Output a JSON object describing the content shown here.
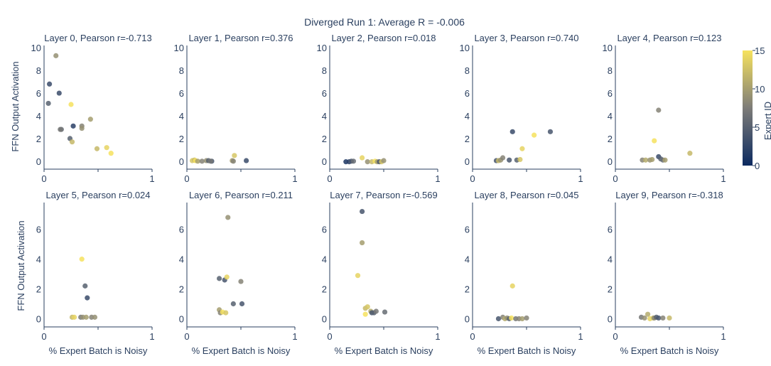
{
  "figure": {
    "title": "Diverged Run 1: Average R = -0.006",
    "xlabel": "% Expert Batch is Noisy",
    "ylabel": "FFN Output Activation",
    "colorbar": {
      "title": "Expert ID",
      "ticks": [
        "0",
        "5",
        "10",
        "15"
      ],
      "min": 0,
      "max": 15
    }
  },
  "colors": {
    "low": "#0c2a60",
    "mid": "#7d7c78",
    "high": "#f6e25e",
    "axis": "#2a3f5f"
  },
  "chart_data": [
    {
      "type": "scatter",
      "title": "Layer 0, Pearson r=-0.713",
      "xlim": [
        0,
        1
      ],
      "ylim": [
        -0.7,
        10.2
      ],
      "yticks": [
        0,
        2,
        4,
        6,
        8,
        10
      ],
      "xticks": [
        0,
        0.5,
        1
      ],
      "xticklabels": [
        "0",
        "",
        "1"
      ],
      "points": [
        [
          0.11,
          9.3,
          9
        ],
        [
          0.05,
          6.8,
          3
        ],
        [
          0.04,
          5.1,
          5
        ],
        [
          0.14,
          6.0,
          3
        ],
        [
          0.27,
          3.1,
          2
        ],
        [
          0.35,
          3.1,
          8
        ],
        [
          0.35,
          2.9,
          9
        ],
        [
          0.43,
          3.7,
          10
        ],
        [
          0.16,
          2.8,
          6
        ],
        [
          0.15,
          2.8,
          7
        ],
        [
          0.25,
          5.0,
          15
        ],
        [
          0.24,
          2.0,
          5
        ],
        [
          0.26,
          1.7,
          12
        ],
        [
          0.49,
          1.1,
          12
        ],
        [
          0.58,
          1.2,
          14
        ],
        [
          0.62,
          0.7,
          15
        ]
      ]
    },
    {
      "type": "scatter",
      "title": "Layer 1, Pearson r=0.376",
      "xlim": [
        0,
        1
      ],
      "ylim": [
        -0.7,
        10.2
      ],
      "yticks": [
        0,
        2,
        4,
        6,
        8,
        10
      ],
      "xticks": [
        0,
        0.5,
        1
      ],
      "xticklabels": [
        "0",
        "",
        "1"
      ],
      "points": [
        [
          0.05,
          0.05,
          13
        ],
        [
          0.07,
          0.1,
          12
        ],
        [
          0.08,
          0.05,
          15
        ],
        [
          0.1,
          0.0,
          10
        ],
        [
          0.14,
          0.0,
          8
        ],
        [
          0.18,
          0.05,
          9
        ],
        [
          0.2,
          0.05,
          5
        ],
        [
          0.23,
          0.0,
          4
        ],
        [
          0.22,
          0.0,
          7
        ],
        [
          0.42,
          0.05,
          10
        ],
        [
          0.43,
          0.0,
          8
        ],
        [
          0.44,
          0.5,
          13
        ],
        [
          0.55,
          0.05,
          3
        ]
      ]
    },
    {
      "type": "scatter",
      "title": "Layer 2, Pearson r=0.018",
      "xlim": [
        0,
        1
      ],
      "ylim": [
        -0.7,
        10.2
      ],
      "yticks": [
        0,
        2,
        4,
        6,
        8,
        10
      ],
      "xticks": [
        0,
        0.5,
        1
      ],
      "xticklabels": [
        "0",
        "",
        "1"
      ],
      "points": [
        [
          0.15,
          -0.05,
          1
        ],
        [
          0.18,
          -0.05,
          2
        ],
        [
          0.2,
          0.0,
          4
        ],
        [
          0.22,
          0.0,
          6
        ],
        [
          0.3,
          0.3,
          14
        ],
        [
          0.35,
          -0.05,
          9
        ],
        [
          0.39,
          -0.05,
          12
        ],
        [
          0.42,
          0.0,
          15
        ],
        [
          0.44,
          -0.05,
          10
        ],
        [
          0.46,
          -0.05,
          4
        ],
        [
          0.48,
          -0.05,
          13
        ],
        [
          0.5,
          0.05,
          9
        ]
      ]
    },
    {
      "type": "scatter",
      "title": "Layer 3, Pearson r=0.740",
      "xlim": [
        0,
        1
      ],
      "ylim": [
        -0.7,
        10.2
      ],
      "yticks": [
        0,
        2,
        4,
        6,
        8,
        10
      ],
      "xticks": [
        0,
        0.5,
        1
      ],
      "xticklabels": [
        "0",
        "",
        "1"
      ],
      "points": [
        [
          0.22,
          0.05,
          4
        ],
        [
          0.24,
          0.05,
          12
        ],
        [
          0.26,
          0.1,
          9
        ],
        [
          0.28,
          0.3,
          8
        ],
        [
          0.34,
          0.1,
          4
        ],
        [
          0.37,
          2.6,
          3
        ],
        [
          0.41,
          0.1,
          5
        ],
        [
          0.44,
          0.15,
          13
        ],
        [
          0.46,
          1.1,
          14
        ],
        [
          0.57,
          2.3,
          15
        ],
        [
          0.72,
          2.6,
          4
        ]
      ]
    },
    {
      "type": "scatter",
      "title": "Layer 4, Pearson r=0.123",
      "xlim": [
        0,
        1
      ],
      "ylim": [
        -0.7,
        10.2
      ],
      "yticks": [
        0,
        2,
        4,
        6,
        8,
        10
      ],
      "xticks": [
        0,
        0.5,
        1
      ],
      "xticklabels": [
        "0",
        "",
        "1"
      ],
      "points": [
        [
          0.25,
          0.1,
          8
        ],
        [
          0.28,
          0.1,
          11
        ],
        [
          0.32,
          0.1,
          9
        ],
        [
          0.34,
          0.15,
          10
        ],
        [
          0.36,
          1.8,
          15
        ],
        [
          0.4,
          4.5,
          8
        ],
        [
          0.4,
          0.4,
          3
        ],
        [
          0.42,
          0.2,
          5
        ],
        [
          0.44,
          0.1,
          6
        ],
        [
          0.46,
          0.1,
          10
        ],
        [
          0.69,
          0.7,
          12
        ]
      ]
    },
    {
      "type": "scatter",
      "title": "Layer 5, Pearson r=0.024",
      "xlim": [
        0,
        1
      ],
      "ylim": [
        -0.55,
        7.8
      ],
      "yticks": [
        0,
        2,
        4,
        6
      ],
      "xticks": [
        0,
        0.5,
        1
      ],
      "xticklabels": [
        "0",
        "",
        "1"
      ],
      "points": [
        [
          0.26,
          0.1,
          12
        ],
        [
          0.28,
          0.1,
          14
        ],
        [
          0.34,
          0.1,
          7
        ],
        [
          0.35,
          4.0,
          15
        ],
        [
          0.36,
          0.1,
          9
        ],
        [
          0.38,
          2.2,
          5
        ],
        [
          0.39,
          0.1,
          10
        ],
        [
          0.4,
          1.4,
          3
        ],
        [
          0.44,
          0.1,
          8
        ],
        [
          0.47,
          0.1,
          9
        ]
      ]
    },
    {
      "type": "scatter",
      "title": "Layer 6, Pearson r=0.211",
      "xlim": [
        0,
        1
      ],
      "ylim": [
        -0.55,
        7.8
      ],
      "yticks": [
        0,
        2,
        4,
        6
      ],
      "xticks": [
        0,
        0.5,
        1
      ],
      "xticklabels": [
        "0",
        "",
        "1"
      ],
      "points": [
        [
          0.3,
          2.7,
          5
        ],
        [
          0.3,
          0.6,
          10
        ],
        [
          0.31,
          0.4,
          8
        ],
        [
          0.33,
          0.45,
          15
        ],
        [
          0.35,
          2.6,
          4
        ],
        [
          0.36,
          0.4,
          13
        ],
        [
          0.37,
          2.8,
          14
        ],
        [
          0.38,
          6.8,
          9
        ],
        [
          0.43,
          1.0,
          5
        ],
        [
          0.5,
          2.5,
          8
        ],
        [
          0.51,
          1.0,
          4
        ]
      ]
    },
    {
      "type": "scatter",
      "title": "Layer 7, Pearson r=-0.569",
      "xlim": [
        0,
        1
      ],
      "ylim": [
        -0.55,
        7.8
      ],
      "yticks": [
        0,
        2,
        4,
        6
      ],
      "xticks": [
        0,
        0.5,
        1
      ],
      "xticklabels": [
        "0",
        "",
        "1"
      ],
      "points": [
        [
          0.26,
          2.9,
          14
        ],
        [
          0.3,
          7.2,
          4
        ],
        [
          0.3,
          5.1,
          10
        ],
        [
          0.33,
          0.7,
          12
        ],
        [
          0.33,
          0.3,
          15
        ],
        [
          0.35,
          0.8,
          13
        ],
        [
          0.38,
          0.5,
          11
        ],
        [
          0.39,
          0.4,
          4
        ],
        [
          0.41,
          0.4,
          5
        ],
        [
          0.43,
          0.5,
          7
        ],
        [
          0.51,
          0.45,
          6
        ]
      ]
    },
    {
      "type": "scatter",
      "title": "Layer 8, Pearson r=0.045",
      "xlim": [
        0,
        1
      ],
      "ylim": [
        -0.55,
        7.8
      ],
      "yticks": [
        0,
        2,
        4,
        6
      ],
      "xticks": [
        0,
        0.5,
        1
      ],
      "xticklabels": [
        "0",
        "",
        "1"
      ],
      "points": [
        [
          0.24,
          0.0,
          4
        ],
        [
          0.28,
          0.1,
          8
        ],
        [
          0.3,
          0.0,
          11
        ],
        [
          0.32,
          0.05,
          9
        ],
        [
          0.34,
          0.0,
          5
        ],
        [
          0.36,
          0.05,
          15
        ],
        [
          0.37,
          2.2,
          14
        ],
        [
          0.4,
          0.0,
          7
        ],
        [
          0.43,
          0.0,
          8
        ],
        [
          0.46,
          0.0,
          10
        ],
        [
          0.5,
          0.05,
          8
        ]
      ]
    },
    {
      "type": "scatter",
      "title": "Layer 9, Pearson r=-0.318",
      "xlim": [
        0,
        1
      ],
      "ylim": [
        -0.55,
        7.8
      ],
      "yticks": [
        0,
        2,
        4,
        6
      ],
      "xticks": [
        0,
        0.5,
        1
      ],
      "xticklabels": [
        "0",
        "",
        "1"
      ],
      "points": [
        [
          0.24,
          0.1,
          7
        ],
        [
          0.27,
          0.05,
          9
        ],
        [
          0.3,
          0.3,
          11
        ],
        [
          0.32,
          0.0,
          14
        ],
        [
          0.35,
          0.05,
          13
        ],
        [
          0.36,
          0.05,
          8
        ],
        [
          0.38,
          0.1,
          5
        ],
        [
          0.4,
          0.05,
          4
        ],
        [
          0.44,
          0.05,
          8
        ],
        [
          0.5,
          0.05,
          12
        ]
      ]
    }
  ]
}
